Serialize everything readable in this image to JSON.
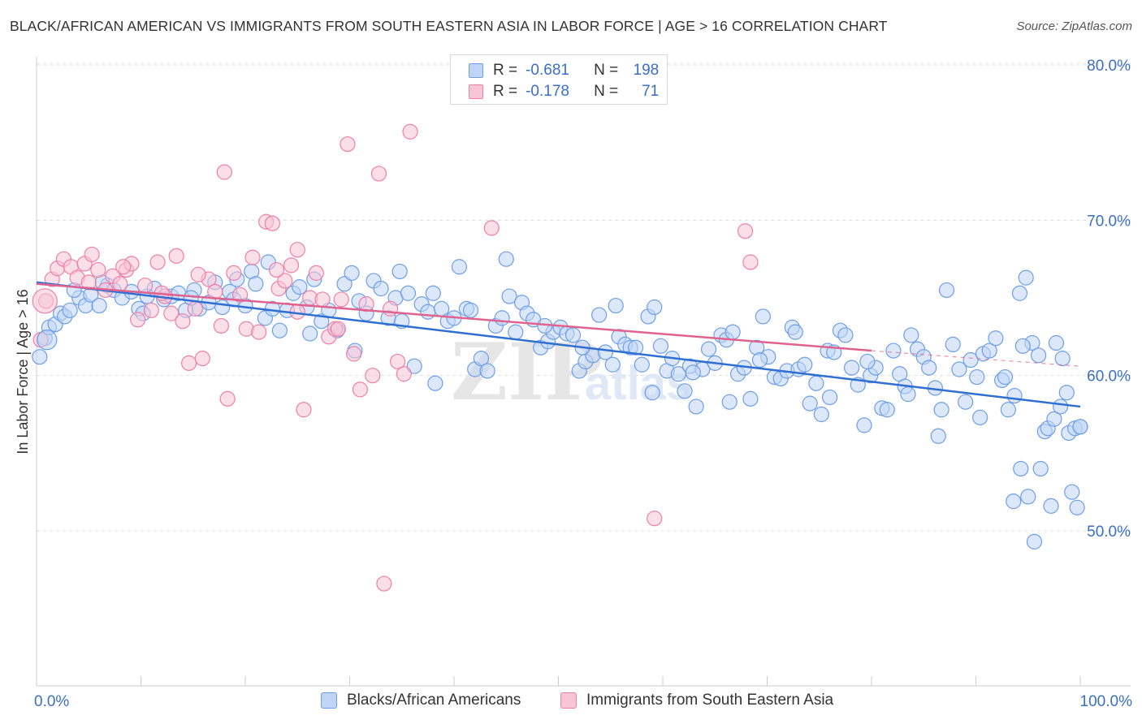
{
  "title": "BLACK/AFRICAN AMERICAN VS IMMIGRANTS FROM SOUTH EASTERN ASIA IN LABOR FORCE | AGE > 16 CORRELATION CHART",
  "source": "Source: ZipAtlas.com",
  "legend_stats": [
    {
      "r_label": "R =",
      "r_value": "-0.681",
      "n_label": "N =",
      "n_value": "198",
      "color": "#6d9ee6",
      "fill": "#c0d5f5"
    },
    {
      "r_label": "R =",
      "r_value": "-0.178",
      "n_label": "N =",
      "n_value": "71",
      "color": "#ef7fa8",
      "fill": "#f8c5d6"
    }
  ],
  "chart_data": {
    "type": "scatter",
    "ylabel": "In Labor Force | Age > 16",
    "xlim": [
      0,
      100
    ],
    "ylim": [
      40,
      82.5
    ],
    "x_tick_labels": [
      "0.0%",
      "100.0%"
    ],
    "y_ticks": [
      50,
      60,
      70,
      80
    ],
    "y_tick_labels": [
      "50.0%",
      "60.0%",
      "70.0%",
      "80.0%"
    ],
    "grid": true,
    "watermark": "ZIPatlas",
    "series": [
      {
        "name": "Blacks/African Americans",
        "color": "#6d9ee6",
        "fill": "#c0d5f5",
        "trend": {
          "x0": 0,
          "y0": 66.0,
          "x1": 100,
          "y1": 58.0
        },
        "points": [
          [
            0.3,
            61.2
          ],
          [
            0.8,
            62.4
          ],
          [
            1.2,
            63.1
          ],
          [
            1.8,
            63.3
          ],
          [
            2.3,
            64.0
          ],
          [
            2.7,
            63.8
          ],
          [
            3.2,
            64.2
          ],
          [
            4.1,
            65.0
          ],
          [
            4.7,
            64.5
          ],
          [
            5.2,
            65.2
          ],
          [
            6.0,
            64.5
          ],
          [
            6.8,
            65.8
          ],
          [
            7.4,
            65.5
          ],
          [
            8.2,
            65.0
          ],
          [
            9.1,
            65.4
          ],
          [
            9.8,
            64.3
          ],
          [
            10.6,
            65.1
          ],
          [
            11.3,
            65.6
          ],
          [
            12.2,
            64.9
          ],
          [
            12.9,
            65.1
          ],
          [
            13.6,
            65.3
          ],
          [
            14.3,
            64.2
          ],
          [
            15.1,
            65.5
          ],
          [
            15.6,
            64.3
          ],
          [
            16.5,
            64.7
          ],
          [
            17.1,
            66.0
          ],
          [
            17.8,
            64.4
          ],
          [
            18.5,
            65.4
          ],
          [
            19.2,
            66.2
          ],
          [
            20.0,
            64.5
          ],
          [
            20.6,
            66.7
          ],
          [
            21.0,
            65.9
          ],
          [
            21.9,
            63.7
          ],
          [
            22.6,
            64.3
          ],
          [
            23.3,
            62.9
          ],
          [
            24.0,
            64.2
          ],
          [
            24.6,
            65.3
          ],
          [
            25.2,
            65.7
          ],
          [
            25.9,
            64.4
          ],
          [
            26.6,
            66.2
          ],
          [
            27.3,
            63.5
          ],
          [
            28.0,
            64.2
          ],
          [
            28.8,
            62.9
          ],
          [
            29.5,
            65.9
          ],
          [
            30.2,
            66.6
          ],
          [
            30.9,
            64.8
          ],
          [
            31.6,
            64.0
          ],
          [
            32.3,
            66.1
          ],
          [
            33.0,
            65.6
          ],
          [
            33.7,
            63.7
          ],
          [
            34.4,
            65.0
          ],
          [
            35.0,
            63.5
          ],
          [
            35.6,
            65.3
          ],
          [
            36.2,
            60.6
          ],
          [
            36.9,
            64.6
          ],
          [
            37.5,
            64.1
          ],
          [
            38.2,
            59.5
          ],
          [
            38.8,
            64.3
          ],
          [
            39.4,
            63.5
          ],
          [
            40.0,
            63.7
          ],
          [
            40.5,
            67.0
          ],
          [
            41.2,
            64.3
          ],
          [
            42.0,
            60.4
          ],
          [
            42.6,
            61.1
          ],
          [
            43.2,
            60.3
          ],
          [
            44.0,
            63.2
          ],
          [
            44.6,
            63.7
          ],
          [
            45.3,
            65.1
          ],
          [
            45.9,
            62.8
          ],
          [
            46.5,
            64.7
          ],
          [
            47.0,
            64.0
          ],
          [
            47.6,
            63.6
          ],
          [
            48.3,
            61.8
          ],
          [
            49.0,
            62.2
          ],
          [
            49.5,
            62.8
          ],
          [
            50.2,
            63.1
          ],
          [
            50.8,
            62.7
          ],
          [
            51.4,
            62.6
          ],
          [
            52.0,
            60.3
          ],
          [
            52.6,
            60.9
          ],
          [
            53.3,
            61.3
          ],
          [
            53.9,
            63.9
          ],
          [
            54.5,
            61.5
          ],
          [
            55.2,
            60.7
          ],
          [
            55.8,
            62.5
          ],
          [
            56.4,
            62.0
          ],
          [
            56.9,
            61.8
          ],
          [
            57.4,
            61.8
          ],
          [
            58.0,
            60.7
          ],
          [
            58.6,
            63.8
          ],
          [
            59.2,
            64.4
          ],
          [
            59.8,
            61.9
          ],
          [
            60.4,
            60.3
          ],
          [
            60.9,
            61.1
          ],
          [
            61.5,
            60.1
          ],
          [
            62.1,
            59.0
          ],
          [
            62.6,
            60.6
          ],
          [
            63.2,
            58.0
          ],
          [
            63.8,
            60.4
          ],
          [
            64.4,
            61.7
          ],
          [
            65.0,
            60.8
          ],
          [
            65.6,
            62.6
          ],
          [
            66.1,
            62.3
          ],
          [
            66.7,
            62.8
          ],
          [
            67.2,
            60.1
          ],
          [
            67.8,
            60.5
          ],
          [
            68.4,
            58.5
          ],
          [
            69.0,
            61.8
          ],
          [
            69.6,
            63.8
          ],
          [
            70.1,
            61.2
          ],
          [
            70.7,
            59.9
          ],
          [
            71.3,
            59.8
          ],
          [
            71.9,
            60.3
          ],
          [
            72.4,
            63.1
          ],
          [
            73.0,
            60.4
          ],
          [
            73.6,
            60.7
          ],
          [
            74.1,
            58.2
          ],
          [
            74.7,
            59.5
          ],
          [
            75.2,
            57.5
          ],
          [
            75.8,
            61.6
          ],
          [
            76.4,
            61.5
          ],
          [
            77.0,
            62.9
          ],
          [
            77.5,
            62.6
          ],
          [
            78.1,
            60.5
          ],
          [
            78.7,
            59.4
          ],
          [
            79.3,
            56.8
          ],
          [
            79.9,
            60.0
          ],
          [
            80.4,
            60.5
          ],
          [
            81.0,
            57.9
          ],
          [
            81.5,
            57.8
          ],
          [
            82.1,
            61.6
          ],
          [
            82.7,
            60.1
          ],
          [
            83.2,
            59.3
          ],
          [
            83.8,
            62.6
          ],
          [
            84.4,
            61.7
          ],
          [
            85.0,
            61.2
          ],
          [
            85.5,
            60.5
          ],
          [
            86.1,
            59.2
          ],
          [
            86.7,
            57.8
          ],
          [
            87.2,
            65.5
          ],
          [
            87.8,
            62.0
          ],
          [
            88.4,
            60.4
          ],
          [
            89.0,
            58.3
          ],
          [
            89.5,
            61.0
          ],
          [
            90.1,
            59.9
          ],
          [
            90.7,
            61.4
          ],
          [
            91.3,
            61.6
          ],
          [
            91.9,
            62.4
          ],
          [
            92.5,
            59.7
          ],
          [
            93.1,
            57.8
          ],
          [
            93.7,
            58.7
          ],
          [
            94.2,
            65.3
          ],
          [
            94.8,
            66.3
          ],
          [
            95.4,
            62.1
          ],
          [
            96.0,
            61.3
          ],
          [
            96.6,
            56.4
          ],
          [
            97.2,
            51.6
          ],
          [
            97.7,
            62.1
          ],
          [
            98.3,
            61.1
          ],
          [
            98.9,
            56.3
          ],
          [
            99.5,
            56.6
          ],
          [
            100.0,
            56.7
          ],
          [
            92.8,
            59.9
          ],
          [
            93.6,
            51.9
          ],
          [
            94.3,
            54.0
          ],
          [
            95.0,
            52.2
          ],
          [
            95.6,
            49.3
          ],
          [
            96.2,
            54.0
          ],
          [
            96.9,
            56.6
          ],
          [
            97.5,
            57.2
          ],
          [
            98.1,
            58.0
          ],
          [
            98.7,
            58.9
          ],
          [
            99.2,
            52.5
          ],
          [
            99.7,
            51.5
          ],
          [
            100.0,
            56.7
          ],
          [
            3.6,
            65.5
          ],
          [
            6.3,
            66.0
          ],
          [
            10.2,
            64.0
          ],
          [
            14.8,
            65.0
          ],
          [
            18.9,
            64.9
          ],
          [
            22.2,
            67.3
          ],
          [
            26.2,
            62.7
          ],
          [
            30.5,
            61.6
          ],
          [
            34.8,
            66.7
          ],
          [
            38.0,
            65.3
          ],
          [
            41.6,
            64.2
          ],
          [
            45.0,
            67.5
          ],
          [
            48.7,
            63.2
          ],
          [
            52.3,
            61.8
          ],
          [
            55.5,
            64.5
          ],
          [
            59.0,
            58.9
          ],
          [
            62.9,
            60.2
          ],
          [
            66.4,
            58.3
          ],
          [
            69.3,
            61.0
          ],
          [
            72.7,
            62.8
          ],
          [
            76.0,
            58.6
          ],
          [
            79.6,
            60.9
          ],
          [
            83.5,
            58.8
          ],
          [
            86.4,
            56.1
          ],
          [
            90.4,
            57.3
          ],
          [
            94.5,
            61.9
          ]
        ]
      },
      {
        "name": "Immigrants from South Eastern Asia",
        "color": "#ef7fa8",
        "fill": "#f8c5d6",
        "trend": {
          "x0": 0,
          "y0": 65.9,
          "x1": 80,
          "y1": 61.6
        },
        "trend_ext": {
          "x0": 80,
          "y0": 61.6,
          "x1": 100,
          "y1": 60.6
        },
        "points": [
          [
            0.4,
            62.3
          ],
          [
            0.9,
            64.8
          ],
          [
            1.5,
            66.2
          ],
          [
            2.0,
            66.9
          ],
          [
            2.6,
            67.5
          ],
          [
            3.3,
            67.0
          ],
          [
            3.9,
            66.3
          ],
          [
            4.6,
            67.2
          ],
          [
            5.3,
            67.8
          ],
          [
            5.9,
            66.8
          ],
          [
            6.6,
            65.5
          ],
          [
            7.3,
            66.4
          ],
          [
            8.0,
            65.9
          ],
          [
            8.6,
            66.8
          ],
          [
            9.1,
            67.2
          ],
          [
            9.7,
            63.6
          ],
          [
            10.4,
            65.8
          ],
          [
            11.0,
            64.2
          ],
          [
            11.6,
            67.3
          ],
          [
            12.3,
            65.1
          ],
          [
            12.9,
            64.0
          ],
          [
            13.4,
            67.7
          ],
          [
            14.0,
            63.5
          ],
          [
            14.6,
            60.8
          ],
          [
            15.2,
            64.3
          ],
          [
            15.9,
            61.1
          ],
          [
            16.5,
            66.2
          ],
          [
            17.1,
            65.4
          ],
          [
            17.7,
            63.2
          ],
          [
            18.3,
            58.5
          ],
          [
            18.9,
            66.6
          ],
          [
            19.5,
            65.2
          ],
          [
            20.1,
            63.0
          ],
          [
            20.7,
            67.6
          ],
          [
            21.3,
            62.8
          ],
          [
            22.0,
            69.9
          ],
          [
            22.6,
            69.8
          ],
          [
            23.2,
            65.6
          ],
          [
            23.8,
            66.1
          ],
          [
            24.4,
            67.1
          ],
          [
            25.0,
            64.1
          ],
          [
            25.6,
            57.8
          ],
          [
            26.2,
            65.0
          ],
          [
            26.8,
            66.6
          ],
          [
            27.4,
            64.9
          ],
          [
            28.0,
            62.5
          ],
          [
            28.6,
            63.0
          ],
          [
            29.2,
            64.9
          ],
          [
            29.8,
            74.9
          ],
          [
            30.4,
            61.4
          ],
          [
            31.0,
            59.1
          ],
          [
            31.6,
            64.6
          ],
          [
            32.2,
            60.0
          ],
          [
            32.8,
            73.0
          ],
          [
            33.3,
            46.6
          ],
          [
            33.9,
            64.3
          ],
          [
            34.6,
            60.9
          ],
          [
            35.2,
            60.1
          ],
          [
            35.8,
            75.7
          ],
          [
            18.0,
            73.1
          ],
          [
            25.0,
            68.1
          ],
          [
            43.6,
            69.5
          ],
          [
            67.9,
            69.3
          ],
          [
            68.4,
            67.3
          ],
          [
            59.2,
            50.8
          ],
          [
            12.0,
            65.3
          ],
          [
            5.0,
            66.0
          ],
          [
            8.3,
            67.0
          ],
          [
            15.5,
            66.5
          ],
          [
            23.0,
            66.8
          ],
          [
            28.9,
            63.0
          ]
        ]
      }
    ]
  },
  "bottom_legend": [
    {
      "label": "Blacks/African Americans",
      "color": "#6d9ee6",
      "fill": "#c0d5f5"
    },
    {
      "label": "Immigrants from South Eastern Asia",
      "color": "#ef7fa8",
      "fill": "#f8c5d6"
    }
  ]
}
